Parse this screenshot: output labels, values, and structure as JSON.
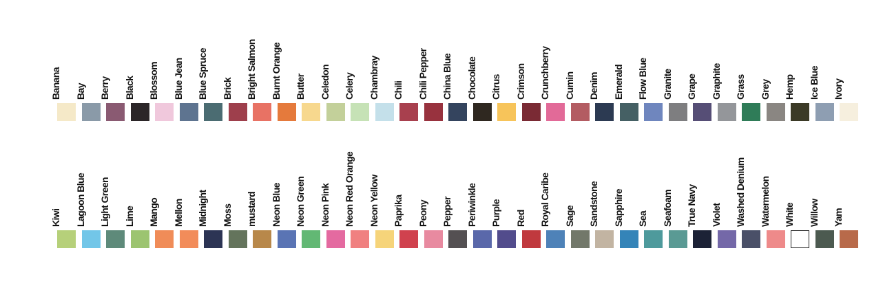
{
  "rows": [
    {
      "swatches": [
        {
          "name": "Banana",
          "color": "#f5e9c8"
        },
        {
          "name": "Bay",
          "color": "#8a9aa8"
        },
        {
          "name": "Berry",
          "color": "#8a5a72"
        },
        {
          "name": "Black",
          "color": "#2b2628"
        },
        {
          "name": "Blossom",
          "color": "#f0c8dc"
        },
        {
          "name": "Blue Jean",
          "color": "#5e7490"
        },
        {
          "name": "Blue Spruce",
          "color": "#4b6c72"
        },
        {
          "name": "Brick",
          "color": "#9e3f4c"
        },
        {
          "name": "Bright Salmon",
          "color": "#e87264"
        },
        {
          "name": "Burnt Orange",
          "color": "#e57a3c"
        },
        {
          "name": "Butter",
          "color": "#f7d88e"
        },
        {
          "name": "Celedon",
          "color": "#c3d09a"
        },
        {
          "name": "Celery",
          "color": "#c6e2b6"
        },
        {
          "name": "Chambray",
          "color": "#c4e0ea"
        },
        {
          "name": "Chili",
          "color": "#a8404e"
        },
        {
          "name": "Chili Pepper",
          "color": "#98323e"
        },
        {
          "name": "China Blue",
          "color": "#34445e"
        },
        {
          "name": "Chocolate",
          "color": "#2f2820"
        },
        {
          "name": "Citrus",
          "color": "#f7c45a"
        },
        {
          "name": "Crimson",
          "color": "#7a2a34"
        },
        {
          "name": "Crunchberry",
          "color": "#e26a98"
        },
        {
          "name": "Cumin",
          "color": "#b35c62"
        },
        {
          "name": "Denim",
          "color": "#2c3a52"
        },
        {
          "name": "Emerald",
          "color": "#456064"
        },
        {
          "name": "Flow Blue",
          "color": "#6f86be"
        },
        {
          "name": "Granite",
          "color": "#7e7e80"
        },
        {
          "name": "Grape",
          "color": "#564e76"
        },
        {
          "name": "Graphite",
          "color": "#94969a"
        },
        {
          "name": "Grass",
          "color": "#2f7c58"
        },
        {
          "name": "Grey",
          "color": "#8a8682"
        },
        {
          "name": "Hemp",
          "color": "#3b3a26"
        },
        {
          "name": "Ice Blue",
          "color": "#8e9eb2"
        },
        {
          "name": "Ivory",
          "color": "#f6efde"
        }
      ]
    },
    {
      "swatches": [
        {
          "name": "Kiwi",
          "color": "#b6d07a"
        },
        {
          "name": "Lagoon Blue",
          "color": "#72c6e8"
        },
        {
          "name": "Light Green",
          "color": "#5e8a7a"
        },
        {
          "name": "Lime",
          "color": "#9cc470"
        },
        {
          "name": "Mango",
          "color": "#f08c58"
        },
        {
          "name": "Mellon",
          "color": "#f28c5a"
        },
        {
          "name": "Midnight",
          "color": "#2c3454"
        },
        {
          "name": "Moss",
          "color": "#64745c"
        },
        {
          "name": "mustard",
          "color": "#b8884a"
        },
        {
          "name": "Neon Blue",
          "color": "#5a74b4"
        },
        {
          "name": "Neon Green",
          "color": "#62b874"
        },
        {
          "name": "Neon Pink",
          "color": "#e46aa0"
        },
        {
          "name": "Neon Red Orange",
          "color": "#f08080"
        },
        {
          "name": "Neon Yellow",
          "color": "#f6d47a"
        },
        {
          "name": "Paprika",
          "color": "#d0424e"
        },
        {
          "name": "Peony",
          "color": "#e88aa0"
        },
        {
          "name": "Pepper",
          "color": "#545052"
        },
        {
          "name": "Periwinkle",
          "color": "#5a68aa"
        },
        {
          "name": "Purple",
          "color": "#524c8c"
        },
        {
          "name": "Red",
          "color": "#c0393e"
        },
        {
          "name": "Royal Caribe",
          "color": "#4e82b8"
        },
        {
          "name": "Sage",
          "color": "#72786a"
        },
        {
          "name": "Sandstone",
          "color": "#c2b4a2"
        },
        {
          "name": "Sapphire",
          "color": "#3484b8"
        },
        {
          "name": "Sea",
          "color": "#4e9a9c"
        },
        {
          "name": "Seafoam",
          "color": "#5a9a94"
        },
        {
          "name": "True Navy",
          "color": "#1c2236"
        },
        {
          "name": "Violet",
          "color": "#7468a8"
        },
        {
          "name": "Washed Denium",
          "color": "#4a5068"
        },
        {
          "name": "Watermelon",
          "color": "#ee8a8a"
        },
        {
          "name": "White",
          "color": "#ffffff"
        },
        {
          "name": "Willow",
          "color": "#4c5a50"
        },
        {
          "name": "Yam",
          "color": "#b86a4a"
        }
      ]
    }
  ]
}
